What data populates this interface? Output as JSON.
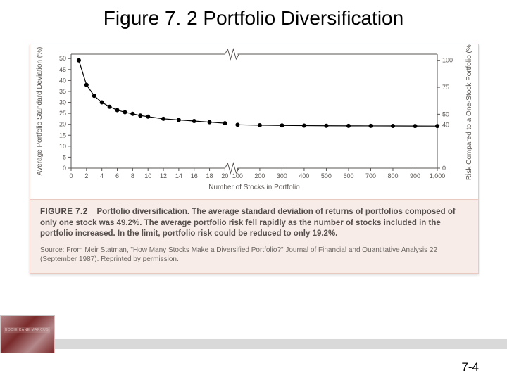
{
  "slide": {
    "title": "Figure 7. 2 Portfolio Diversification",
    "page_number": "7-4",
    "book_label": "BODIE  KANE  MARCUS"
  },
  "chart": {
    "type": "line",
    "background_color": "#ffffff",
    "plot_border_color": "#5a5552",
    "axis_break_symbol": true,
    "series_color": "#000000",
    "marker": {
      "style": "circle",
      "size": 3,
      "fill": "#000000"
    },
    "line_width": 1.2,
    "left_axis": {
      "title": "Average Portfolio Standard Deviation (%)",
      "min": 0,
      "max": 52,
      "ticks": [
        0,
        5,
        10,
        15,
        20,
        25,
        30,
        35,
        40,
        45,
        50
      ],
      "tick_fontsize": 9,
      "title_fontsize": 10
    },
    "right_axis": {
      "title": "Risk Compared to a One-Stock Portfolio (%)",
      "ticks": [
        0,
        40,
        50,
        75,
        100
      ],
      "tick_fontsize": 9,
      "title_fontsize": 10
    },
    "x_axis": {
      "title": "Number of Stocks in Portfolio",
      "segment_a": {
        "min": 0,
        "max": 20,
        "tick_step": 2
      },
      "segment_b": {
        "min": 100,
        "max": 1000,
        "tick_step": 100
      },
      "tick_fontsize": 9,
      "title_fontsize": 10
    },
    "data_segment_a": {
      "x": [
        1,
        2,
        3,
        4,
        5,
        6,
        7,
        8,
        9,
        10,
        12,
        14,
        16,
        18,
        20
      ],
      "y": [
        49.2,
        38,
        33,
        30,
        28,
        26.5,
        25.5,
        24.8,
        24,
        23.5,
        22.5,
        22,
        21.5,
        21,
        20.5
      ]
    },
    "data_segment_b": {
      "x": [
        100,
        200,
        300,
        400,
        500,
        600,
        700,
        800,
        900,
        1000
      ],
      "y": [
        19.8,
        19.6,
        19.5,
        19.4,
        19.35,
        19.3,
        19.28,
        19.25,
        19.22,
        19.2
      ]
    }
  },
  "caption": {
    "figure_number": "FIGURE 7.2",
    "body": "Portfolio diversification. The average standard deviation of returns of portfolios composed of only one stock was 49.2%. The average portfolio risk fell rapidly as the number of stocks included in the portfolio increased. In the limit, portfolio risk could be reduced to only 19.2%.",
    "source_label": "Source:",
    "source_body": "From Meir Statman, \"How Many Stocks Make a Diversified Portfolio?\" Journal of Financial and Quantitative Analysis 22 (September 1987). Reprinted by permission."
  },
  "colors": {
    "card_border": "#e9c9c0",
    "caption_bg": "#f7ece8",
    "text_muted": "#55504d",
    "footer_grey": "#d9d9d9"
  }
}
